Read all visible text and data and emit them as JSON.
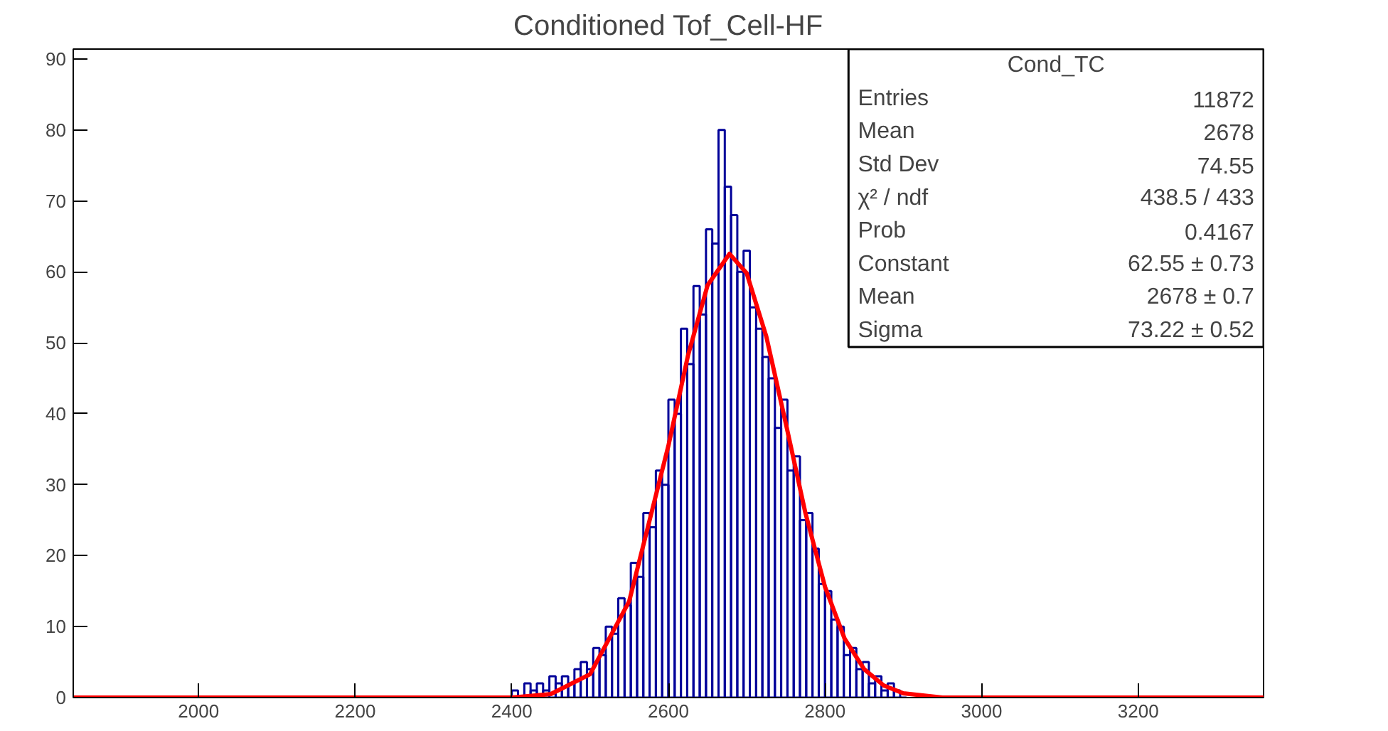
{
  "chart_data": {
    "type": "histogram",
    "title": "Conditioned Tof_Cell-HF",
    "xlim": [
      1840,
      3360
    ],
    "ylim": [
      0,
      91.4
    ],
    "xticks": [
      2000,
      2200,
      2400,
      2600,
      2800,
      3000,
      3200
    ],
    "yticks": [
      0,
      10,
      20,
      30,
      40,
      50,
      60,
      70,
      80,
      90
    ],
    "grid": false,
    "series": [
      {
        "color": "#000099",
        "bins": [
          2400,
          2408,
          2416,
          2424,
          2432,
          2440,
          2448,
          2456,
          2464,
          2472,
          2480,
          2488,
          2496,
          2504,
          2512,
          2520,
          2528,
          2536,
          2544,
          2552,
          2560,
          2568,
          2576,
          2584,
          2592,
          2600,
          2608,
          2616,
          2624,
          2632,
          2640,
          2648,
          2656,
          2664,
          2672,
          2680,
          2688,
          2696,
          2704,
          2712,
          2720,
          2728,
          2736,
          2744,
          2752,
          2760,
          2768,
          2776,
          2784,
          2792,
          2800,
          2808,
          2816,
          2824,
          2832,
          2840,
          2848,
          2856,
          2864,
          2872,
          2880,
          2888,
          2896,
          2904
        ],
        "values": [
          1,
          0,
          2,
          1,
          2,
          1,
          3,
          2,
          3,
          2,
          4,
          5,
          4,
          7,
          6,
          10,
          9,
          14,
          13,
          19,
          17,
          26,
          24,
          32,
          30,
          42,
          40,
          52,
          47,
          58,
          54,
          66,
          64,
          80,
          72,
          68,
          60,
          63,
          55,
          52,
          48,
          45,
          38,
          42,
          32,
          34,
          25,
          26,
          21,
          16,
          15,
          11,
          10,
          6,
          7,
          4,
          5,
          2,
          3,
          1,
          2,
          1,
          0
        ]
      },
      {
        "type": "line",
        "color": "#ff0000",
        "x": [
          1840,
          2400,
          2450,
          2500,
          2550,
          2600,
          2625,
          2650,
          2678,
          2700,
          2725,
          2750,
          2775,
          2800,
          2825,
          2850,
          2875,
          2900,
          2950,
          3000,
          3360
        ],
        "values": [
          0,
          0,
          0.5,
          3.3,
          13.6,
          35.5,
          48.2,
          58.1,
          62.55,
          59.8,
          50.9,
          38.6,
          26.0,
          15.6,
          8.3,
          4.0,
          1.7,
          0.6,
          0,
          0,
          0
        ]
      }
    ],
    "annotations": [
      "Cond_TC",
      "Entries",
      "11872",
      "Mean",
      "2678",
      "Std Dev",
      "74.55",
      "χ² / ndf",
      "438.5 / 433",
      "Prob",
      "0.4167",
      "Constant",
      "62.55 ± 0.73",
      "Mean",
      "2678 ± 0.7",
      "Sigma",
      "73.22 ± 0.52"
    ]
  }
}
